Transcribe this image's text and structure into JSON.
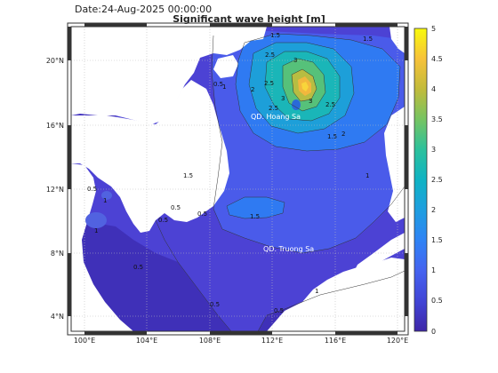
{
  "header": {
    "date": "Date:24-Aug-2025 00:00:00",
    "title": "Significant wave height [m]"
  },
  "map": {
    "lon_range": [
      99,
      120.5
    ],
    "lat_range": [
      3,
      22
    ],
    "x_ticks": [
      "100°E",
      "104°E",
      "108°E",
      "112°E",
      "116°E",
      "120°E"
    ],
    "y_ticks": [
      "20°N",
      "16°N",
      "12°N",
      "8°N",
      "4°N"
    ],
    "places": {
      "hoang_sa": "QD. Hoang Sa",
      "truong_sa": "QD. Truong Sa"
    },
    "contour_labels": [
      "1.5",
      "2.5",
      "3",
      "1.5",
      "2",
      "2.5",
      "2.5",
      "3",
      "3",
      "2.5",
      "2",
      "1.5",
      "1.5",
      "1",
      "1",
      "1",
      "1.5",
      "1",
      "0.5",
      "0.5",
      "0.5",
      "0.5",
      "0.5",
      "0.5",
      "1",
      "0.5",
      "0.5"
    ],
    "land_color": "#ffffff",
    "grid": true
  },
  "colorbar": {
    "colormap": "parula",
    "range": [
      0,
      5
    ],
    "ticks": [
      "5",
      "4.5",
      "4",
      "3.5",
      "3",
      "2.5",
      "2",
      "1.5",
      "1",
      "0.5",
      "0"
    ]
  }
}
